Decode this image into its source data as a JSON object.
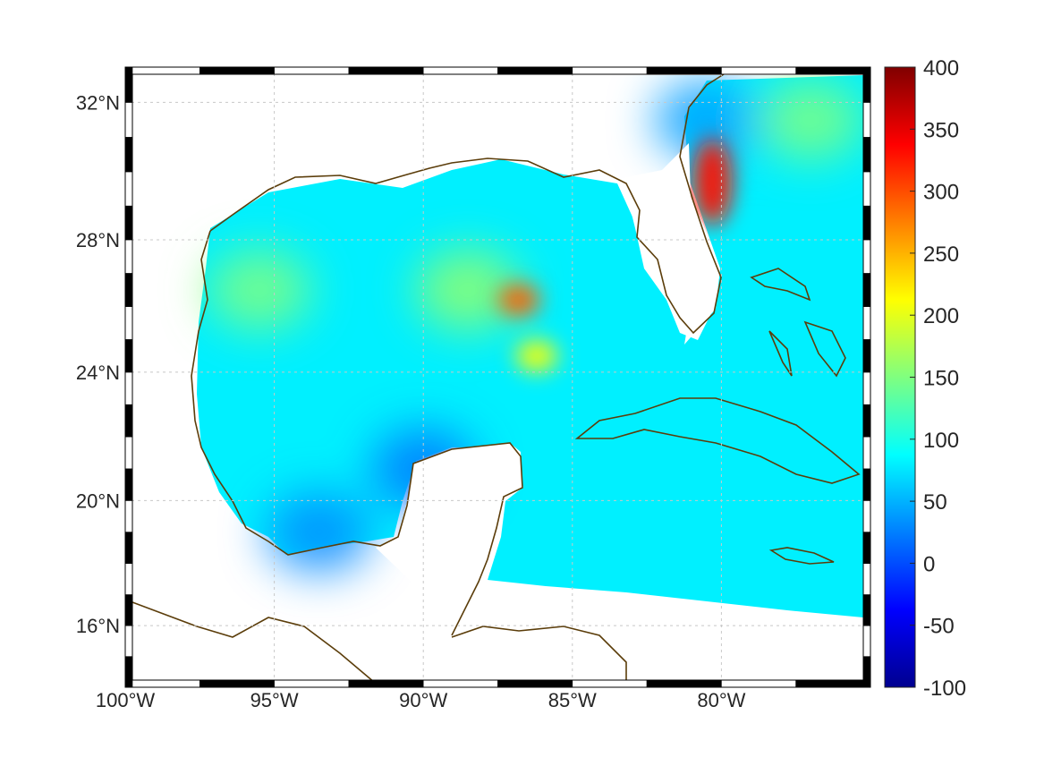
{
  "map": {
    "region": "Gulf of Mexico",
    "projection": "mercator",
    "lon_range": [
      -100,
      -75
    ],
    "lat_range": [
      14,
      33
    ],
    "frame": "black-white fancy",
    "grid": true,
    "coastline_color": "#5b3d0a",
    "lon_ticks": [
      {
        "value": -100,
        "label": "100°W"
      },
      {
        "value": -95,
        "label": "95°W"
      },
      {
        "value": -90,
        "label": "90°W"
      },
      {
        "value": -85,
        "label": "85°W"
      },
      {
        "value": -80,
        "label": "80°W"
      }
    ],
    "lat_ticks": [
      {
        "value": 32,
        "label": "32°N"
      },
      {
        "value": 28,
        "label": "28°N"
      },
      {
        "value": 24,
        "label": "24°N"
      },
      {
        "value": 20,
        "label": "20°N"
      },
      {
        "value": 16,
        "label": "16°N"
      }
    ]
  },
  "colorbar": {
    "colormap": "jet",
    "range": [
      -100,
      400
    ],
    "ticks": [
      "400",
      "350",
      "300",
      "250",
      "200",
      "150",
      "100",
      "50",
      "0",
      "-50",
      "-100"
    ]
  },
  "chart_data": {
    "type": "heatmap",
    "background_level": 80,
    "features": [
      {
        "lon": -80.3,
        "lat": 29.7,
        "value": 330
      },
      {
        "lon": -86.8,
        "lat": 26.2,
        "value": 290
      },
      {
        "lon": -86.2,
        "lat": 24.5,
        "value": 210
      },
      {
        "lon": -88.5,
        "lat": 26.5,
        "value": 160
      },
      {
        "lon": -95.5,
        "lat": 26.5,
        "value": 150
      },
      {
        "lon": -90,
        "lat": 21,
        "value": 20
      },
      {
        "lon": -93.5,
        "lat": 19,
        "value": 30
      },
      {
        "lon": -80.5,
        "lat": 31.5,
        "value": 40
      },
      {
        "lon": -77,
        "lat": 31.5,
        "value": 150
      }
    ]
  }
}
